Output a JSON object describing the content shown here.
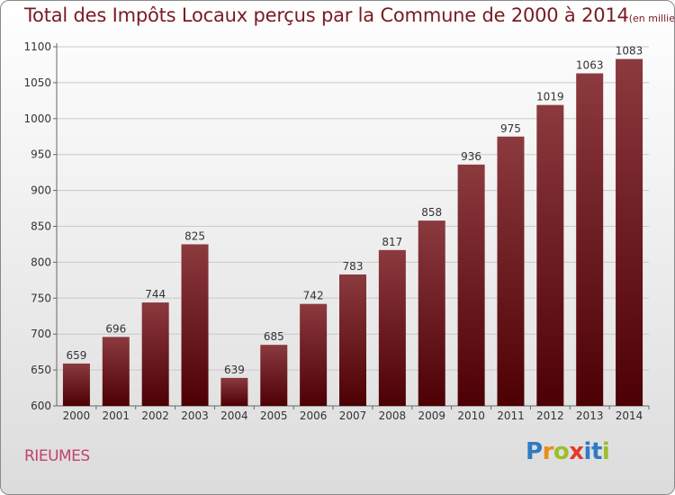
{
  "title": "Total des Impôts Locaux perçus par la Commune de 2000 à 2014",
  "unit": "(en milliers d'€)",
  "commune": "RIEUMES",
  "logo_text": "Proxiti",
  "colors": {
    "bar_top": "#8b3a3e",
    "bar_bottom": "#4d0004",
    "title": "#7a1a22",
    "commune": "#c2426a"
  },
  "chart_data": {
    "type": "bar",
    "title": "Total des Impôts Locaux perçus par la Commune de 2000 à 2014",
    "xlabel": "",
    "ylabel": "(en milliers d'€)",
    "ylim": [
      600,
      1100
    ],
    "yticks": [
      600,
      650,
      700,
      750,
      800,
      850,
      900,
      950,
      1000,
      1050,
      1100
    ],
    "categories": [
      "2000",
      "2001",
      "2002",
      "2003",
      "2004",
      "2005",
      "2006",
      "2007",
      "2008",
      "2009",
      "2010",
      "2011",
      "2012",
      "2013",
      "2014"
    ],
    "values": [
      659,
      696,
      744,
      825,
      639,
      685,
      742,
      783,
      817,
      858,
      936,
      975,
      1019,
      1063,
      1083
    ],
    "grid": true
  }
}
